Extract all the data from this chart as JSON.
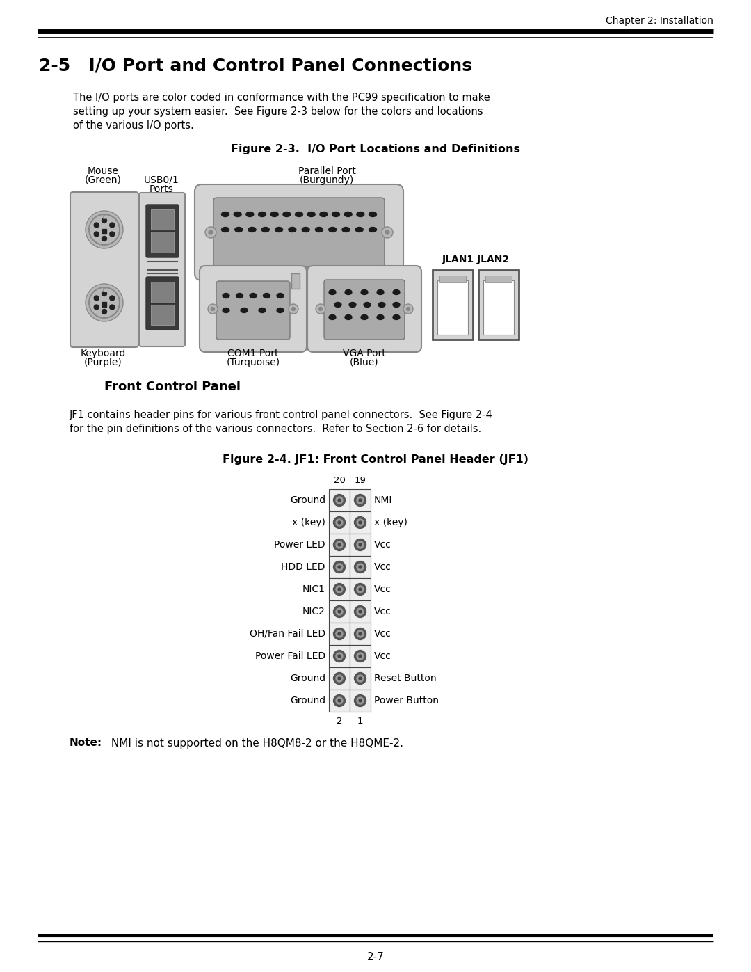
{
  "page_title_right": "Chapter 2: Installation",
  "section_title": "2-5   I/O Port and Control Panel Connections",
  "body_text_1": "The I/O ports are color coded in conformance with the PC99 specification to make",
  "body_text_2": "setting up your system easier.  See Figure 2-3 below for the colors and locations",
  "body_text_3": "of the various I/O ports.",
  "fig1_title": "Figure 2-3.  I/O Port Locations and Definitions",
  "fig2_title": "Figure 2-4. JF1: Front Control Panel Header (JF1)",
  "jf1_rows": [
    {
      "left": "Ground",
      "right": "NMI"
    },
    {
      "left": "x (key)",
      "right": "x (key)"
    },
    {
      "left": "Power LED",
      "right": "Vcc"
    },
    {
      "left": "HDD LED",
      "right": "Vcc"
    },
    {
      "left": "NIC1",
      "right": "Vcc"
    },
    {
      "left": "NIC2",
      "right": "Vcc"
    },
    {
      "left": "OH/Fan Fail LED",
      "right": "Vcc"
    },
    {
      "left": "Power Fail LED",
      "right": "Vcc"
    },
    {
      "left": "Ground",
      "right": "Reset Button"
    },
    {
      "left": "Ground",
      "right": "Power Button"
    }
  ],
  "pin_top_left": "20",
  "pin_top_right": "19",
  "pin_bot_left": "2",
  "pin_bot_right": "1",
  "front_panel_title": "Front Control Panel",
  "front_panel_body_1": "JF1 contains header pins for various front control panel connectors.  See Figure 2-4",
  "front_panel_body_2": "for the pin definitions of the various connectors.  Refer to Section 2-6 for details.",
  "note_bold": "Note:",
  "note_text": " NMI is not supported on the H8QM8-2 or the H8QME-2.",
  "page_number": "2-7",
  "bg_color": "#ffffff"
}
